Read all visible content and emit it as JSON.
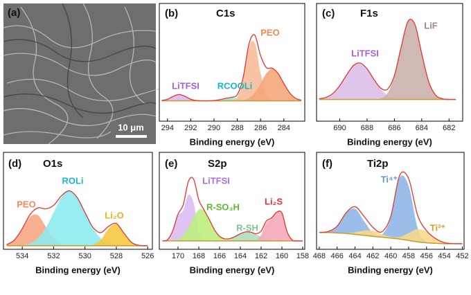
{
  "image_panel": {
    "panel_label": "(a)",
    "scale_bar": "10 μm"
  },
  "chart_data": [
    {
      "type": "xps",
      "panel_label": "(b)",
      "title": "C1s",
      "x_label": "Binding energy (eV)",
      "x": [
        294.5,
        294,
        293.5,
        293,
        292.5,
        292,
        291.5,
        291,
        290.5,
        290,
        289.5,
        289,
        288.5,
        288,
        287.5,
        287,
        286.5,
        286,
        285.5,
        285,
        284.5,
        284,
        283.5,
        283,
        282.5
      ],
      "xlim": [
        294.7,
        282.2
      ],
      "xticks": [
        294,
        292,
        290,
        288,
        286,
        284
      ],
      "ylim": [
        -15,
        95
      ],
      "envelope_color": "#e0403a",
      "background": {
        "color": "#c89a2a",
        "values": [
          4,
          4,
          4,
          4,
          4,
          4,
          4,
          4,
          4,
          4,
          4,
          4,
          4,
          4,
          4,
          4,
          4,
          4,
          4,
          4,
          4,
          4,
          4,
          4,
          4
        ]
      },
      "series": [
        {
          "name": "LiTFSI",
          "color": "#d9b8f0",
          "label_color": "#a85fd8",
          "values": [
            0.3,
            1.5,
            4.2,
            6,
            4.2,
            1.5,
            0.3,
            0,
            0,
            0,
            0,
            0,
            0,
            0,
            0,
            0,
            0,
            0,
            0,
            0,
            0,
            0,
            0,
            0,
            0
          ]
        },
        {
          "name": "RCOOLi",
          "color": "#8fe6e6",
          "label_color": "#1cb5c4",
          "values": [
            0,
            0,
            0,
            0,
            0,
            0,
            0,
            0,
            0,
            0.3,
            1.1,
            2.3,
            3,
            2.3,
            1.1,
            0.3,
            0,
            0,
            0,
            0,
            0,
            0,
            0,
            0,
            0
          ]
        },
        {
          "name": "PEO",
          "color": "#f6bd98",
          "label_color": "#f08a4b",
          "values": [
            0,
            0,
            0,
            0,
            0,
            0,
            0,
            0,
            0,
            0,
            0,
            0,
            0.3,
            3.5,
            20,
            50,
            54,
            26,
            5.4,
            0.5,
            0,
            0,
            0,
            0,
            0
          ]
        },
        {
          "color": "#f4a67c",
          "values": [
            0,
            0,
            0,
            0,
            0,
            0,
            0,
            0,
            0,
            0,
            0,
            0,
            0,
            0,
            0.6,
            2.5,
            7.5,
            16.2,
            25.7,
            30,
            25.7,
            16.2,
            7.5,
            2.5,
            0.6
          ]
        }
      ]
    },
    {
      "type": "xps",
      "panel_label": "(c)",
      "title": "F1s",
      "x_label": "Binding energy (eV)",
      "x": [
        691.5,
        691,
        690.5,
        690,
        689.5,
        689,
        688.5,
        688,
        687.5,
        687,
        686.5,
        686,
        685.5,
        685,
        684.5,
        684,
        683.5,
        683,
        682.5,
        682,
        681.5
      ],
      "xlim": [
        691.7,
        681.0
      ],
      "xticks": [
        690,
        688,
        686,
        684,
        682
      ],
      "ylim": [
        -19,
        100
      ],
      "envelope_color": "#e0403a",
      "background": {
        "color": "#c89a2a",
        "values": [
          3,
          3,
          3,
          3,
          3,
          3,
          3,
          3,
          3,
          3,
          3,
          3,
          3,
          3,
          3,
          3,
          3,
          3,
          3,
          3,
          3
        ]
      },
      "series": [
        {
          "name": "LiTFSI",
          "color": "#dcbfe8",
          "label_color": "#a85fd8",
          "values": [
            0.6,
            2.1,
            6.1,
            13.9,
            24.7,
            34.2,
            36.8,
            30.9,
            20.2,
            10.3,
            4.1,
            1.3,
            0.3,
            0,
            0,
            0,
            0,
            0,
            0,
            0,
            0
          ]
        },
        {
          "name": "LiF",
          "color": "#cbb0ac",
          "label_color": "#a08885",
          "values": [
            0,
            0,
            0,
            0,
            0,
            0,
            0,
            0,
            0.1,
            1.1,
            6.3,
            22.8,
            53,
            79,
            75.7,
            46.4,
            18.3,
            4.6,
            0.7,
            0,
            0
          ]
        }
      ]
    },
    {
      "type": "xps",
      "panel_label": "(d)",
      "title": "O1s",
      "x_label": "Binding energy (eV)",
      "x": [
        535,
        534.5,
        534,
        533.5,
        533,
        532.5,
        532,
        531.5,
        531,
        530.5,
        530,
        529.5,
        529,
        528.5,
        528,
        527.5,
        527,
        526.5,
        526
      ],
      "xlim": [
        535.2,
        525.7
      ],
      "xticks": [
        534,
        532,
        530,
        528,
        526
      ],
      "ylim": [
        0,
        110
      ],
      "envelope_color": "#e0403a",
      "background": {
        "color": "#c89a2a",
        "values": [
          4,
          4,
          4,
          4,
          4,
          4,
          4,
          4,
          4,
          4,
          4,
          4,
          4,
          4,
          4,
          4,
          4,
          4,
          4
        ]
      },
      "series": [
        {
          "name": "PEO",
          "color": "#f6a984",
          "label_color": "#f08a5d",
          "values": [
            1.3,
            6.4,
            18.7,
            32.8,
            34.6,
            21.8,
            8.3,
            1.9,
            0.3,
            0,
            0,
            0,
            0,
            0,
            0,
            0,
            0,
            0,
            0
          ]
        },
        {
          "name": "ROLi",
          "color": "#8eeaee",
          "label_color": "#1cb5c4",
          "values": [
            0,
            0.1,
            0.7,
            2.7,
            8.4,
            20.1,
            37.6,
            54.7,
            62,
            54.7,
            37.6,
            20.1,
            8.4,
            2.7,
            0.7,
            0.1,
            0,
            0,
            0
          ]
        },
        {
          "name": "Li₂O",
          "color": "#f5c842",
          "label_color": "#e8b020",
          "values": [
            0,
            0,
            0,
            0,
            0,
            0,
            0,
            0,
            0,
            0,
            0.1,
            1.0,
            6.5,
            19.2,
            24.6,
            13.8,
            3.4,
            0.4,
            0
          ]
        }
      ]
    },
    {
      "type": "xps",
      "panel_label": "(e)",
      "title": "S2p",
      "x_label": "Binding energy (eV)",
      "x": [
        171.5,
        171,
        170.5,
        170,
        169.5,
        169,
        168.5,
        168,
        167.5,
        167,
        166.5,
        166,
        165.5,
        165,
        164.5,
        164,
        163.5,
        163,
        162.5,
        162,
        161.5,
        161,
        160.5,
        160,
        159.5,
        159,
        158.5,
        158
      ],
      "xlim": [
        171.8,
        157.8
      ],
      "xticks": [
        170,
        168,
        166,
        164,
        162,
        160,
        158
      ],
      "ylim": [
        -7,
        120
      ],
      "envelope_color": "#e0403a",
      "background": {
        "color": "#c89a2a",
        "values": [
          4,
          4,
          4,
          4,
          4,
          4,
          4,
          4,
          4,
          4,
          4,
          4,
          4,
          4,
          4,
          4,
          4,
          4,
          4,
          4,
          4,
          4,
          4,
          4,
          4,
          4,
          4,
          4
        ]
      },
      "series": [
        {
          "name": "LiTFSI",
          "color": "#dcbdf2",
          "label_color": "#b06ee0",
          "values": [
            0,
            1.6,
            13.1,
            33,
            40.1,
            60.5,
            49.9,
            12.8,
            1,
            0,
            0,
            0,
            0,
            0,
            0,
            0,
            0,
            0,
            0,
            0,
            0,
            0,
            0,
            0,
            0,
            0,
            0,
            0
          ]
        },
        {
          "name": "R-SO₃H",
          "color": "#bdf07e",
          "label_color": "#5cb82e",
          "values": [
            0,
            0,
            0.5,
            2.1,
            7.1,
            17.3,
            31,
            41,
            39.7,
            28.3,
            14.8,
            5.7,
            1.6,
            0.3,
            0,
            0,
            0,
            0,
            0,
            0,
            0,
            0,
            0,
            0,
            0,
            0,
            0,
            0
          ]
        },
        {
          "name": "R-SH",
          "color": "#b0dfbd",
          "label_color": "#7cc496",
          "values": [
            0,
            0,
            0,
            0,
            0,
            0,
            0,
            0,
            0,
            0,
            0,
            0.3,
            1.1,
            2.8,
            5.8,
            9.4,
            11.8,
            11.5,
            8.7,
            5.2,
            2.4,
            0.9,
            0.2,
            0,
            0,
            0,
            0,
            0
          ]
        },
        {
          "name": "Li₂S",
          "color": "#f6aabb",
          "label_color": "#e02f3f",
          "values": [
            0,
            0,
            0,
            0,
            0,
            0,
            0,
            0,
            0,
            0,
            0,
            0,
            0,
            0,
            0,
            0,
            0,
            0,
            0.7,
            7.7,
            23.6,
            29,
            37.4,
            36.6,
            11.9,
            1.1,
            0,
            0
          ]
        }
      ]
    },
    {
      "type": "xps",
      "panel_label": "(f)",
      "title": "Ti2p",
      "x_label": "Binding energy (eV)",
      "x": [
        468,
        467,
        466,
        465,
        464,
        463,
        462,
        461,
        460,
        459,
        458,
        457,
        456,
        455,
        454,
        453,
        452
      ],
      "xlim": [
        468.3,
        451.8
      ],
      "xticks": [
        468,
        466,
        464,
        462,
        460,
        458,
        456,
        454,
        452
      ],
      "ylim": [
        -2,
        102
      ],
      "envelope_color": "#e0403a",
      "background": {
        "color": "#c89a2a",
        "values": [
          16,
          16,
          15.5,
          15,
          14,
          13,
          12,
          11,
          10,
          9,
          7.5,
          6,
          5,
          4.5,
          4,
          4,
          4
        ]
      },
      "series": [
        {
          "name": "Ti⁴⁺",
          "color": "#8fb6e8",
          "label_color": "#5b9bd5",
          "values": [
            0.1,
            1.1,
            7.3,
            21.5,
            27.5,
            15.4,
            3.8,
            2.5,
            21.8,
            66.1,
            58.4,
            15,
            1.1,
            0,
            0,
            0,
            0
          ]
        },
        {
          "name": "Ti³⁺",
          "color": "#f6d98e",
          "label_color": "#d4a017",
          "values": [
            0,
            0,
            0,
            0.5,
            2.2,
            5.1,
            5.8,
            3.3,
            1.3,
            2.3,
            7.8,
            13.6,
            11.8,
            5.1,
            1.1,
            0.1,
            0
          ]
        }
      ]
    }
  ]
}
